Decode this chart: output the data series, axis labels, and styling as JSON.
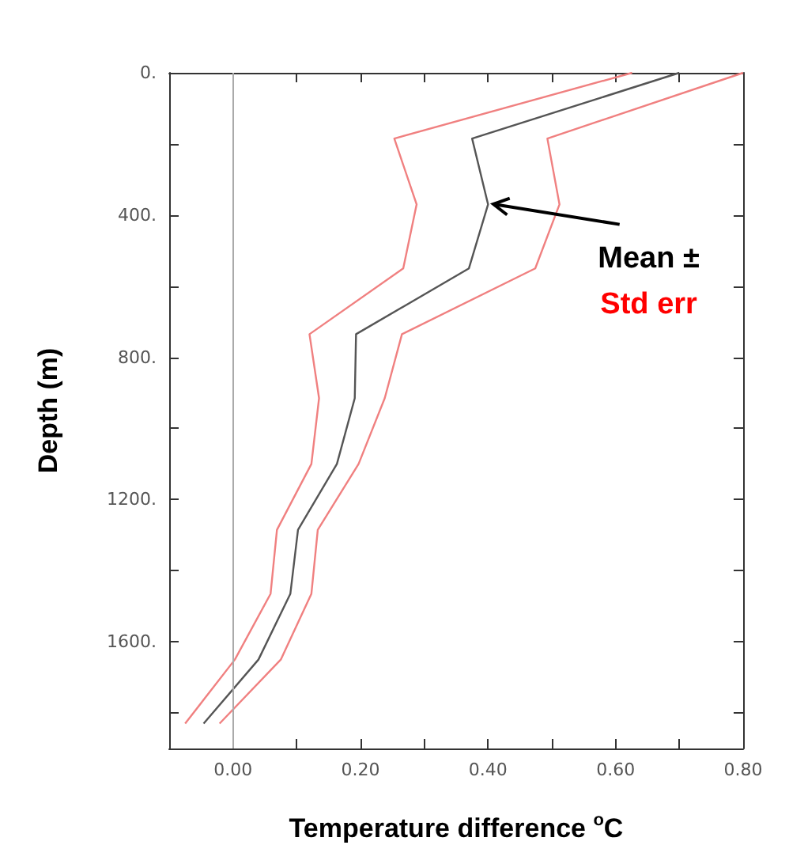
{
  "chart_data": {
    "type": "line",
    "xlabel": "Temperature difference $^{o}$C",
    "ylabel": "Depth (m)",
    "series": [
      {
        "name": null,
        "color": "#f08080",
        "x": [
          0.626,
          0.253,
          0.288,
          0.267,
          0.12,
          0.135,
          0.123,
          0.069,
          0.059,
          0.003,
          -0.075
        ],
        "values": [
          0,
          185,
          370,
          550,
          735,
          915,
          1100,
          1285,
          1465,
          1650,
          1830
        ]
      },
      {
        "name": null,
        "color": "#555555",
        "x": [
          0.7,
          0.375,
          0.4,
          0.37,
          0.193,
          0.191,
          0.163,
          0.102,
          0.09,
          0.04,
          -0.046
        ],
        "values": [
          0,
          185,
          370,
          550,
          735,
          915,
          1100,
          1285,
          1465,
          1650,
          1830
        ]
      },
      {
        "name": null,
        "color": "#f08080",
        "x": [
          0.8,
          0.493,
          0.512,
          0.474,
          0.265,
          0.238,
          0.197,
          0.133,
          0.123,
          0.075,
          -0.021
        ],
        "values": [
          0,
          185,
          370,
          550,
          735,
          915,
          1100,
          1285,
          1465,
          1650,
          1830
        ]
      }
    ],
    "xlim": [
      -0.1,
      0.8
    ],
    "xticks": [
      {
        "value": -0.1,
        "label": null
      },
      {
        "value": 0,
        "label": "0.00"
      },
      {
        "value": 0.1,
        "label": null
      },
      {
        "value": 0.2,
        "label": "0.20"
      },
      {
        "value": 0.3,
        "label": null
      },
      {
        "value": 0.4,
        "label": "0.40"
      },
      {
        "value": 0.5,
        "label": null
      },
      {
        "value": 0.6,
        "label": "0.60"
      },
      {
        "value": 0.7,
        "label": null
      },
      {
        "value": 0.8,
        "label": "0.80"
      }
    ],
    "ylim": [
      1900,
      0
    ],
    "yticks": [
      {
        "value": 0,
        "label": "0."
      },
      {
        "value": 200,
        "label": null
      },
      {
        "value": 400,
        "label": "400."
      },
      {
        "value": 600,
        "label": null
      },
      {
        "value": 800,
        "label": "800."
      },
      {
        "value": 1000,
        "label": null
      },
      {
        "value": 1200,
        "label": "1200."
      },
      {
        "value": 1400,
        "label": null
      },
      {
        "value": 1600,
        "label": "1600."
      },
      {
        "value": 1800,
        "label": null
      }
    ],
    "ref_lines": [
      {
        "axis": "x",
        "value": 0,
        "color": "#aaaaaa"
      }
    ],
    "annotations": [
      {
        "text": "Mean ±",
        "x": 0.4,
        "y": 370
      },
      "Std err"
    ],
    "grid": false,
    "marker": "none",
    "line_style": "solid"
  }
}
